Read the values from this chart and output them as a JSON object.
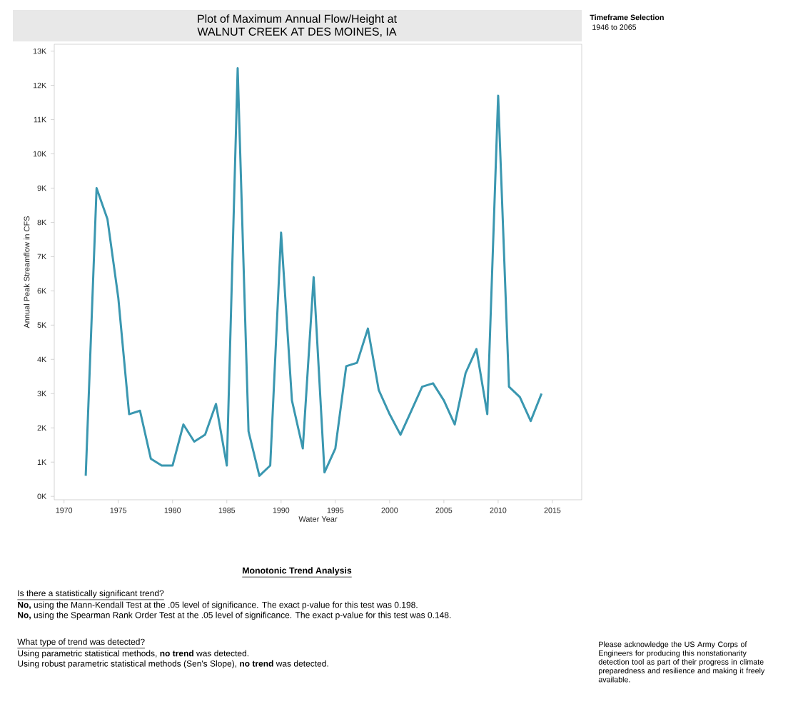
{
  "chart_data": {
    "type": "line",
    "title": "Plot of Maximum Annual Flow/Height at",
    "subtitle": "WALNUT CREEK AT DES MOINES, IA",
    "xlabel": "Water Year",
    "ylabel": "Annual Peak Streamflow in CFS",
    "x": [
      1972,
      1973,
      1974,
      1975,
      1976,
      1977,
      1978,
      1979,
      1980,
      1981,
      1982,
      1983,
      1984,
      1985,
      1986,
      1987,
      1988,
      1989,
      1990,
      1991,
      1992,
      1993,
      1994,
      1995,
      1996,
      1997,
      1998,
      1999,
      2000,
      2001,
      2002,
      2003,
      2004,
      2005,
      2006,
      2007,
      2008,
      2009,
      2010,
      2011,
      2012,
      2013,
      2014
    ],
    "series": [
      {
        "color": "#3a97b0",
        "values": [
          600,
          9000,
          8100,
          5800,
          2400,
          2500,
          1100,
          900,
          900,
          2100,
          1600,
          1800,
          2700,
          900,
          12500,
          1900,
          600,
          900,
          7700,
          2800,
          1400,
          6400,
          700,
          1400,
          3800,
          3900,
          4900,
          3100,
          2400,
          1800,
          2500,
          3200,
          3300,
          2800,
          2100,
          3600,
          4300,
          2400,
          11700,
          3200,
          2900,
          2200,
          3000
        ]
      }
    ],
    "xlim": [
      1969.1,
      2017.7
    ],
    "ylim": [
      -100,
      13200
    ],
    "xticks": [
      1970,
      1975,
      1980,
      1985,
      1990,
      1995,
      2000,
      2005,
      2010,
      2015
    ],
    "yticks": [
      {
        "value": 0,
        "label": "0K"
      },
      {
        "value": 1000,
        "label": "1K"
      },
      {
        "value": 2000,
        "label": "2K"
      },
      {
        "value": 3000,
        "label": "3K"
      },
      {
        "value": 4000,
        "label": "4K"
      },
      {
        "value": 5000,
        "label": "5K"
      },
      {
        "value": 6000,
        "label": "6K"
      },
      {
        "value": 7000,
        "label": "7K"
      },
      {
        "value": 8000,
        "label": "8K"
      },
      {
        "value": 9000,
        "label": "9K"
      },
      {
        "value": 10000,
        "label": "10K"
      },
      {
        "value": 11000,
        "label": "11K"
      },
      {
        "value": 12000,
        "label": "12K"
      },
      {
        "value": 13000,
        "label": "13K"
      }
    ],
    "grid": false,
    "marker": "none",
    "line_style": "solid",
    "annotations": [
      "**Timeframe Selection**",
      "1946 to 2065",
      "**Monotonic Trend Analysis**",
      "Is there a statistically significant trend?",
      "**No,** using the Mann-Kendall Test at the .05 level of significance. The exact p-value for this test was 0.198.",
      "**No,** using the Spearman Rank Order Test at the .05 level of significance. The exact p-value for this test was 0.148.",
      "What type of trend was detected?",
      "Using parametric statistical methods, **no trend** was detected.",
      "Using robust parametric statistical methods (Sen's Slope), **no trend** was detected.",
      "Please acknowledge the US Army Corps of Engineers for producing this nonstationarity detection tool as part of their progress in climate preparedness and resilience and making it freely available."
    ]
  }
}
